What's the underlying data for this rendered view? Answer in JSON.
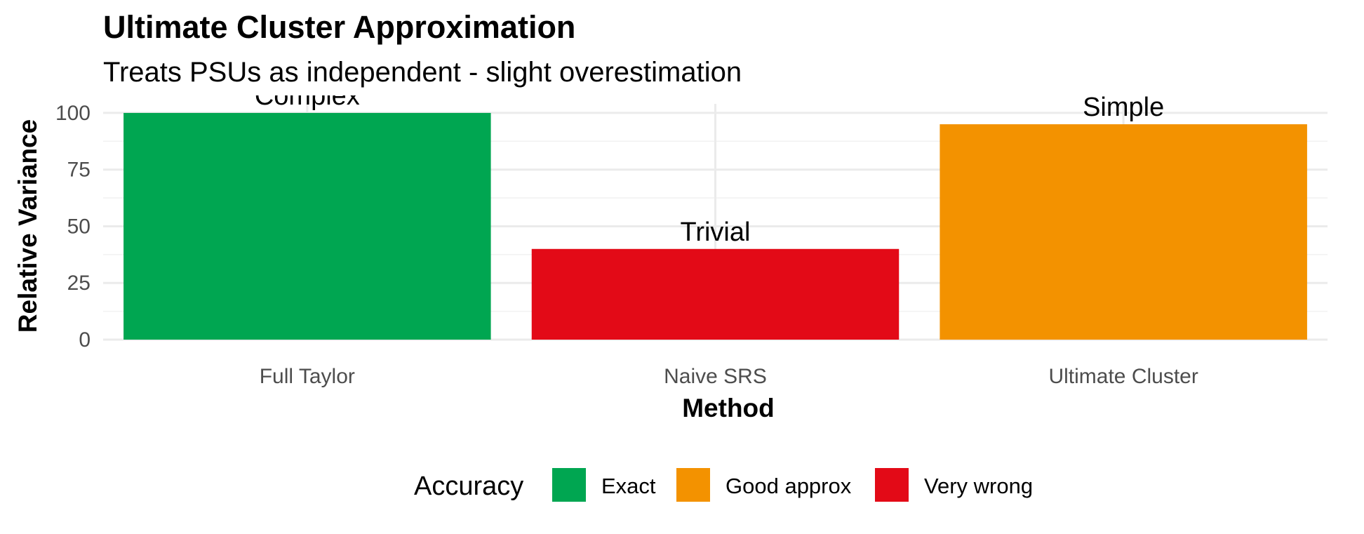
{
  "chart_data": {
    "type": "bar",
    "title": "Ultimate Cluster Approximation",
    "subtitle": "Treats PSUs as independent - slight overestimation",
    "xlabel": "Method",
    "ylabel": "Relative Variance",
    "categories": [
      "Full Taylor",
      "Naive SRS",
      "Ultimate Cluster"
    ],
    "values": [
      100,
      40,
      95
    ],
    "bar_labels": [
      "Complex",
      "Trivial",
      "Simple"
    ],
    "accuracy": [
      "Exact",
      "Very wrong",
      "Good approx"
    ],
    "ylim": [
      0,
      100
    ],
    "y_ticks": [
      0,
      25,
      50,
      75,
      100
    ],
    "grid": true,
    "legend": {
      "title": "Accuracy",
      "position": "bottom",
      "entries": [
        {
          "label": "Exact",
          "color": "#00A651"
        },
        {
          "label": "Good approx",
          "color": "#F39200"
        },
        {
          "label": "Very wrong",
          "color": "#E30A17"
        }
      ]
    }
  }
}
